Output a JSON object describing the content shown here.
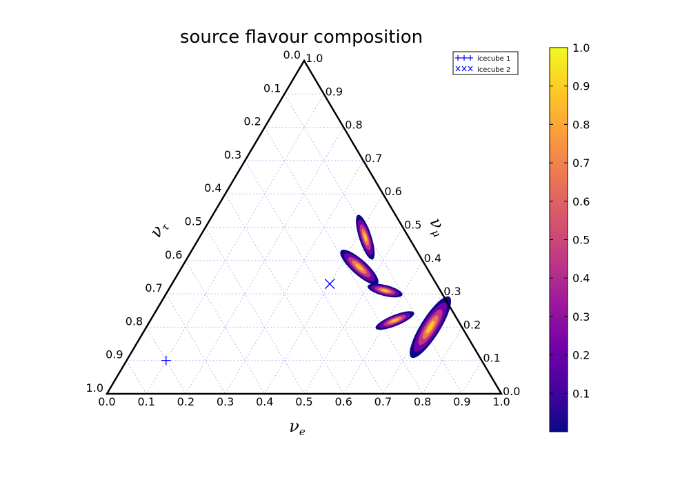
{
  "chart_data": {
    "type": "scatter",
    "subtype": "ternary-density",
    "title": "source flavour composition",
    "axes": {
      "bottom": {
        "label": "ν",
        "label_sub": "e",
        "ticks": [
          "0.0",
          "0.1",
          "0.2",
          "0.3",
          "0.4",
          "0.5",
          "0.6",
          "0.7",
          "0.8",
          "0.9",
          "1.0"
        ]
      },
      "left": {
        "label": "ν",
        "label_sub": "τ",
        "ticks": [
          "0.0",
          "0.1",
          "0.2",
          "0.3",
          "0.4",
          "0.5",
          "0.6",
          "0.7",
          "0.8",
          "0.9",
          "1.0"
        ]
      },
      "right": {
        "label": "ν",
        "label_sub": "μ",
        "ticks": [
          "0.0",
          "0.1",
          "0.2",
          "0.3",
          "0.4",
          "0.5",
          "0.6",
          "0.7",
          "0.8",
          "0.9",
          "1.0"
        ]
      },
      "range": [
        0,
        1
      ],
      "grid": true
    },
    "series": [
      {
        "name": "icecube 1",
        "marker": "+",
        "color": "#0000ff",
        "points": [
          {
            "nu_e": 0.1,
            "nu_mu": 0.1,
            "nu_tau": 0.8
          }
        ]
      },
      {
        "name": "icecube 2",
        "marker": "x",
        "color": "#0000ff",
        "points": [
          {
            "nu_e": 0.4,
            "nu_mu": 0.33,
            "nu_tau": 0.27
          }
        ]
      }
    ],
    "density_clusters": [
      {
        "nu_e": 0.42,
        "nu_mu": 0.47,
        "nu_tau": 0.11,
        "peak": 0.85
      },
      {
        "nu_e": 0.45,
        "nu_mu": 0.38,
        "nu_tau": 0.17,
        "peak": 1.0
      },
      {
        "nu_e": 0.55,
        "nu_mu": 0.31,
        "nu_tau": 0.14,
        "peak": 0.9
      },
      {
        "nu_e": 0.62,
        "nu_mu": 0.22,
        "nu_tau": 0.16,
        "peak": 0.85
      },
      {
        "nu_e": 0.72,
        "nu_mu": 0.2,
        "nu_tau": 0.08,
        "peak": 0.95
      }
    ],
    "legend": {
      "position": "top-right",
      "entries": [
        "icecube 1",
        "icecube 2"
      ]
    },
    "colorbar": {
      "colormap": "plasma",
      "range": [
        0,
        1
      ],
      "ticks": [
        "0.1",
        "0.2",
        "0.3",
        "0.4",
        "0.5",
        "0.6",
        "0.7",
        "0.8",
        "0.9",
        "1.0"
      ]
    }
  },
  "colors": {
    "frame": "#000000",
    "grid": "#b7b7f0",
    "marker": "#0000ff",
    "plasma": [
      "#0d0887",
      "#46039f",
      "#7201a8",
      "#9c179e",
      "#bd3786",
      "#d8576b",
      "#ed7953",
      "#fb9f3a",
      "#fdca26",
      "#f0f921"
    ]
  }
}
